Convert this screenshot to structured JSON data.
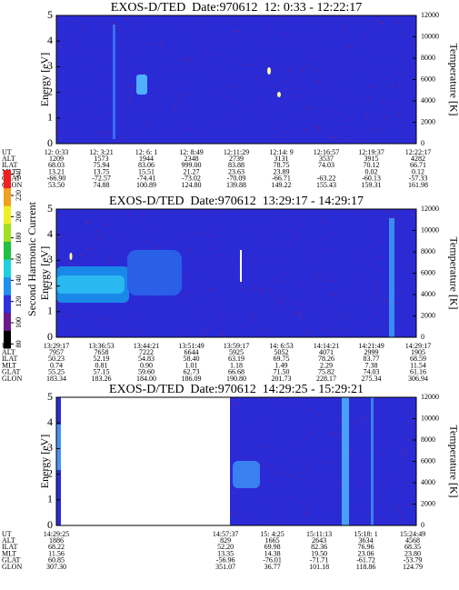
{
  "chart_data": [
    {
      "type": "spectrogram",
      "title": "EXOS-D/TED  Date:970612  12: 0:33 - 12:22:17",
      "ylabel": "Energy [eV]",
      "y2label": "Temperature [K]",
      "ylim": [
        0,
        5
      ],
      "yticks": [
        0,
        1,
        2,
        3,
        4,
        5
      ],
      "y2lim": [
        0,
        12000
      ],
      "y2ticks": [
        0,
        2000,
        4000,
        6000,
        8000,
        10000,
        12000
      ],
      "ephemeris": [
        {
          "label": "UT",
          "values": [
            "12: 0:33",
            "12: 3:21",
            "12: 6: 1",
            "12: 8:49",
            "12:11:29",
            "12:14: 9",
            "12:16:57",
            "12:19:37",
            "12:22:17"
          ]
        },
        {
          "label": "ALT",
          "values": [
            "1209",
            "1573",
            "1944",
            "2348",
            "2739",
            "3131",
            "3537",
            "3915",
            "4282"
          ]
        },
        {
          "label": "ILAT",
          "values": [
            "68.03",
            "75.94",
            "83.06",
            "999.00",
            "83.88",
            "78.75",
            "74.03",
            "70.12",
            "66.71"
          ]
        },
        {
          "label": "MLT",
          "values": [
            "13.21",
            "13.75",
            "15.51",
            "21.27",
            "23.63",
            "23.89",
            null,
            "0.02",
            "0.12"
          ]
        },
        {
          "label": "GLAT",
          "values": [
            "-66.90",
            "-72.57",
            "-74.41",
            "-73.02",
            "-70.09",
            "-66.71",
            "-63.22",
            "-60.13",
            "-57.33"
          ]
        },
        {
          "label": "GLON",
          "values": [
            "53.50",
            "74.88",
            "100.89",
            "124.80",
            "139.88",
            "149.22",
            "155.43",
            "159.31",
            "161.98"
          ]
        }
      ]
    },
    {
      "type": "spectrogram",
      "title": "EXOS-D/TED  Date:970612  13:29:17 - 14:29:17",
      "ylabel": "Energy [eV]",
      "y2label": "Temperature [K]",
      "ylim": [
        0,
        5
      ],
      "yticks": [
        0,
        1,
        2,
        3,
        4,
        5
      ],
      "y2lim": [
        0,
        12000
      ],
      "y2ticks": [
        0,
        2000,
        4000,
        6000,
        8000,
        10000,
        12000
      ],
      "colorbar": {
        "label": "Second Harmonic Current",
        "lim": [
          76,
          244
        ],
        "ticks": [
          80,
          100,
          120,
          140,
          160,
          180,
          200,
          220,
          240
        ]
      },
      "ephemeris": [
        {
          "label": "UT",
          "values": [
            "13:29:17",
            "13:36:53",
            "13:44:21",
            "13:51:49",
            "13:59:17",
            "14: 6:53",
            "14:14:21",
            "14:21:49",
            "14:29:17"
          ]
        },
        {
          "label": "ALT",
          "values": [
            "7957",
            "7658",
            "7222",
            "6644",
            "5925",
            "5052",
            "4071",
            "2999",
            "1905"
          ]
        },
        {
          "label": "ILAT",
          "values": [
            "50.23",
            "52.19",
            "54.83",
            "58.40",
            "63.19",
            "69.75",
            "78.26",
            "83.77",
            "68.59"
          ]
        },
        {
          "label": "MLT",
          "values": [
            "0.74",
            "0.81",
            "0.90",
            "1.01",
            "1.18",
            "1.49",
            "2.29",
            "7.38",
            "11.54"
          ]
        },
        {
          "label": "GLAT",
          "values": [
            "55.25",
            "57.15",
            "59.60",
            "62.73",
            "66.68",
            "71.50",
            "75.82",
            "74.03",
            "61.16"
          ]
        },
        {
          "label": "GLON",
          "values": [
            "183.34",
            "183.26",
            "184.00",
            "186.09",
            "190.80",
            "201.73",
            "228.17",
            "275.34",
            "306.94"
          ]
        }
      ]
    },
    {
      "type": "spectrogram",
      "title": "EXOS-D/TED  Date:970612  14:29:25 - 15:29:21",
      "ylabel": "Energy [eV]",
      "y2label": "Temperature [K]",
      "ylim": [
        0,
        5
      ],
      "yticks": [
        0,
        1,
        2,
        3,
        4,
        5
      ],
      "y2lim": [
        0,
        12000
      ],
      "y2ticks": [
        0,
        2000,
        4000,
        6000,
        8000,
        10000,
        12000
      ],
      "ephemeris": [
        {
          "label": "UT",
          "values": [
            "14:29:25",
            "14:57:37",
            "15: 4:25",
            "15:11:13",
            "15:18: 1",
            "15:24:49"
          ]
        },
        {
          "label": "ALT",
          "values": [
            "1886",
            "829",
            "1665",
            "2643",
            "3634",
            "4568"
          ]
        },
        {
          "label": "ILAT",
          "values": [
            "68.22",
            "52.20",
            "69.98",
            "82.36",
            "76.96",
            "68.35"
          ]
        },
        {
          "label": "MLT",
          "values": [
            "11.56",
            "13.35",
            "14.38",
            "19.50",
            "23.06",
            "23.80"
          ]
        },
        {
          "label": "GLAT",
          "values": [
            "60.85",
            "-56.96",
            "-76.01",
            "-71.71",
            "-61.72",
            "-53.79"
          ]
        },
        {
          "label": "GLON",
          "values": [
            "307.30",
            "351.07",
            "36.77",
            "101.18",
            "118.86",
            "124.79"
          ]
        }
      ]
    }
  ]
}
